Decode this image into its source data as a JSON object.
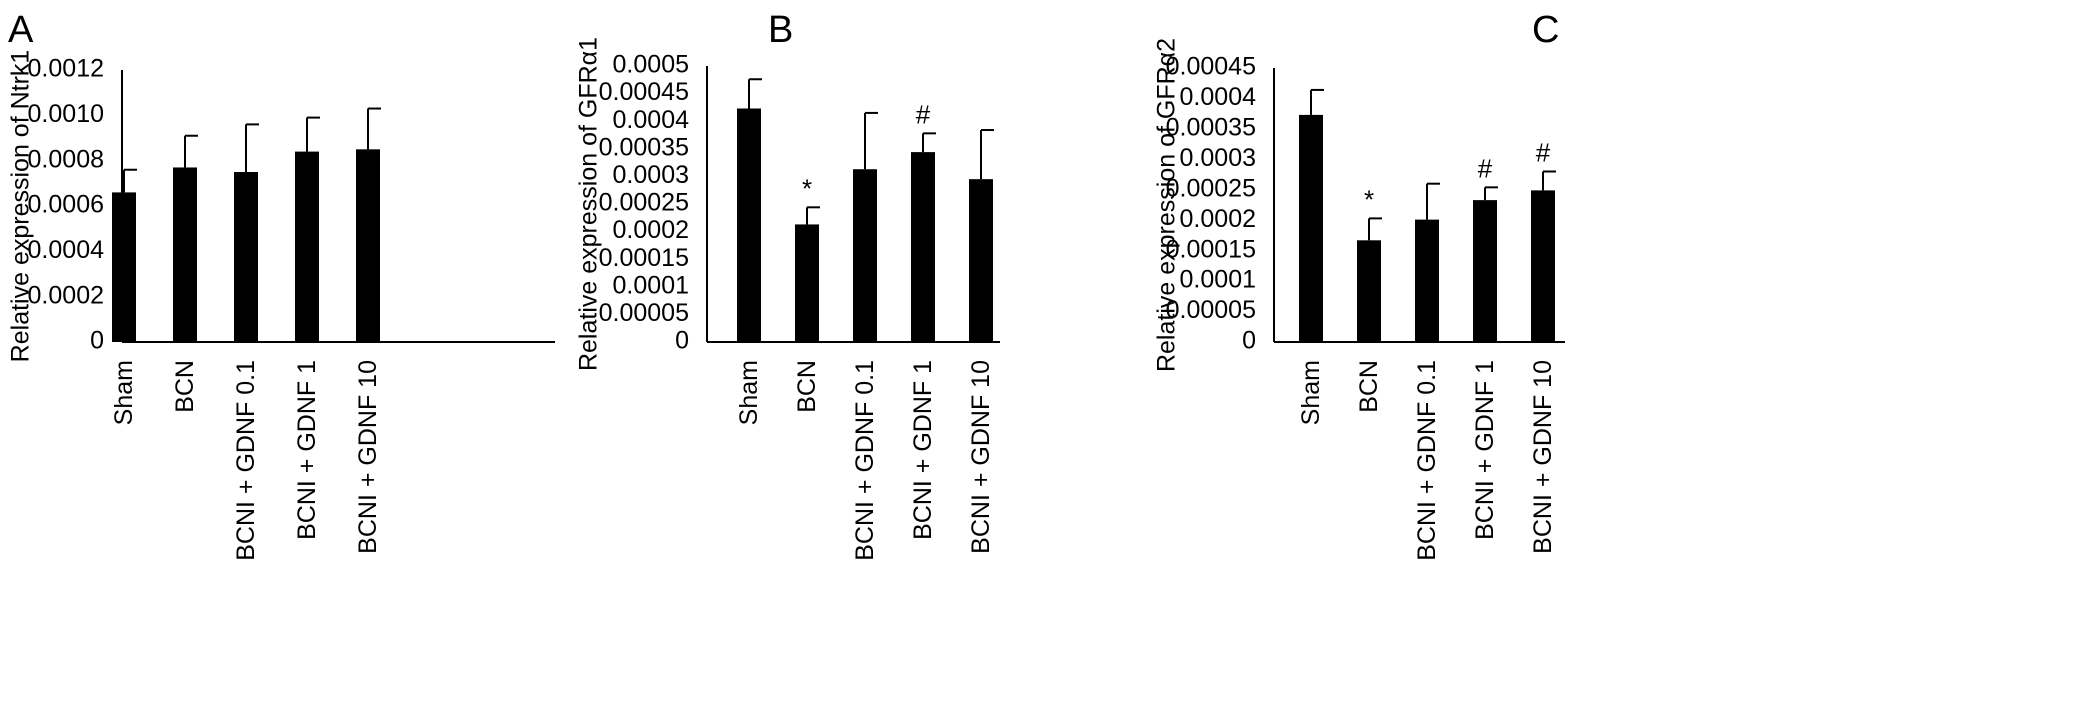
{
  "chart_data": [
    {
      "panel": "A",
      "type": "bar",
      "title": "",
      "xlabel": "",
      "ylabel": "Relative expression of Ntrk1",
      "categories": [
        "Sham",
        "BCN",
        "BCNI + GDNF 0.1",
        "BCNI + GDNF 1",
        "BCNI + GDNF 10"
      ],
      "values": [
        0.00066,
        0.00077,
        0.00075,
        0.00084,
        0.00085
      ],
      "error_up": [
        0.0001,
        0.00014,
        0.00021,
        0.00015,
        0.00018
      ],
      "markers": [
        "",
        "",
        "",
        "",
        ""
      ],
      "ylim": [
        0,
        0.0012
      ],
      "yticks": [
        "0",
        "0.0002",
        "0.0004",
        "0.0006",
        "0.0008",
        "0.0010",
        "0.0012"
      ],
      "bar_color": "#000000"
    },
    {
      "panel": "B",
      "type": "bar",
      "title": "",
      "xlabel": "",
      "ylabel": "Relative expression of GFRα1",
      "categories": [
        "Sham",
        "BCN",
        "BCNI + GDNF 0.1",
        "BCNI + GDNF 1",
        "BCNI + GDNF 10"
      ],
      "values": [
        0.000423,
        0.000213,
        0.000313,
        0.000344,
        0.000295
      ],
      "error_up": [
        5.3e-05,
        3.1e-05,
        0.000102,
        3.4e-05,
        8.9e-05
      ],
      "markers": [
        "",
        "*",
        "",
        "#",
        ""
      ],
      "ylim": [
        0,
        0.0005
      ],
      "yticks": [
        "0",
        "0.00005",
        "0.0001",
        "0.00015",
        "0.0002",
        "0.00025",
        "0.0003",
        "0.00035",
        "0.0004",
        "0.00045",
        "0.0005"
      ],
      "bar_color": "#000000"
    },
    {
      "panel": "C",
      "type": "bar",
      "title": "",
      "xlabel": "",
      "ylabel": "Relative expression of GFRα2",
      "categories": [
        "Sham",
        "BCN",
        "BCNI + GDNF 0.1",
        "BCNI + GDNF 1",
        "BCNI + GDNF 10"
      ],
      "values": [
        0.000373,
        0.000167,
        0.000201,
        0.000233,
        0.000249
      ],
      "error_up": [
        4.1e-05,
        3.6e-05,
        5.9e-05,
        2.1e-05,
        3.1e-05
      ],
      "markers": [
        "",
        "*",
        "",
        "#",
        "#"
      ],
      "ylim": [
        0,
        0.00045
      ],
      "yticks": [
        "0",
        "0.00005",
        "0.0001",
        "0.00015",
        "0.0002",
        "0.00025",
        "0.0003",
        "0.00035",
        "0.0004",
        "0.00045"
      ],
      "bar_color": "#000000"
    }
  ]
}
